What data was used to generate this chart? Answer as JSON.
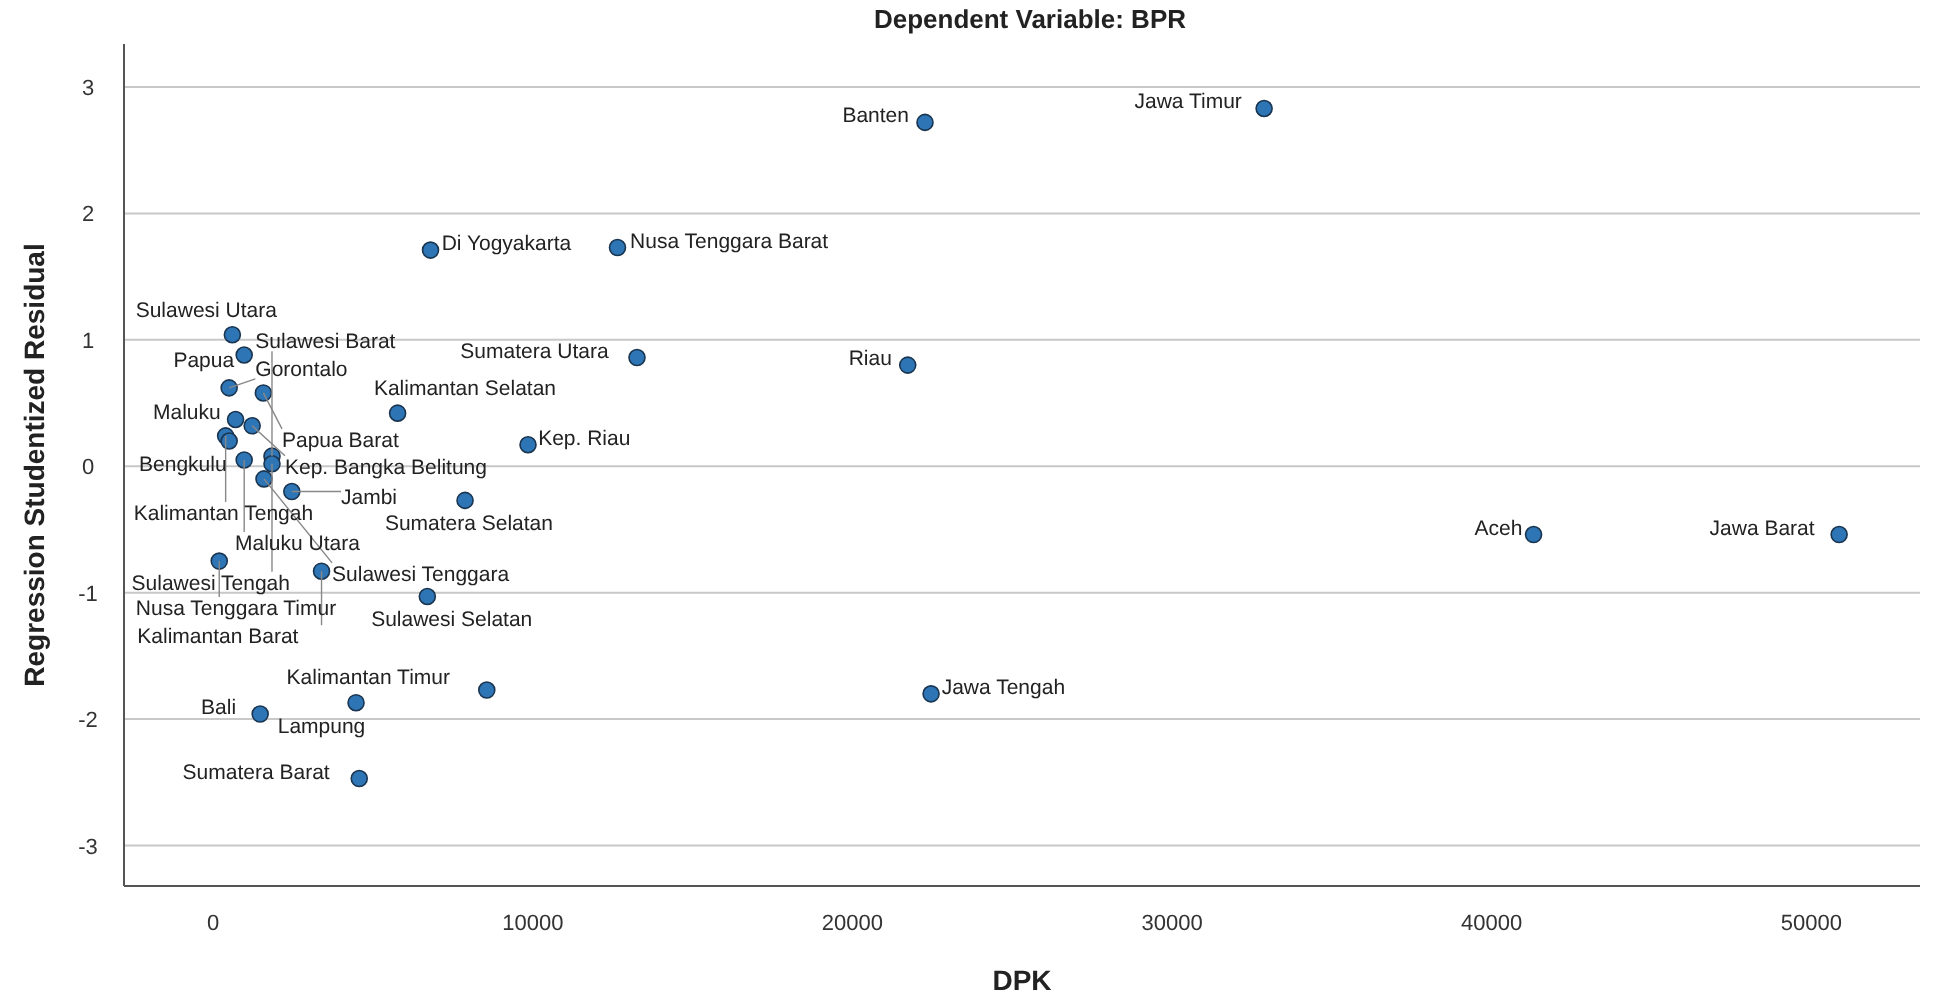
{
  "chart_data": {
    "type": "scatter",
    "title": "Dependent Variable: BPR",
    "xlabel": "DPK",
    "ylabel": "Regression Studentized Residual",
    "xlim": [
      -2790,
      53400
    ],
    "xticks": [
      0,
      10000,
      20000,
      30000,
      40000,
      50000
    ],
    "ylim": [
      -3.32,
      3.34
    ],
    "yticks": [
      -3,
      -2,
      -1,
      0,
      1,
      2,
      3
    ],
    "grid": "y",
    "marker": "circle",
    "series": [
      {
        "color": "#2e75b6",
        "x": [
          22270,
          32880,
          6800,
          12650,
          13260,
          21730,
          41310,
          50870,
          22460,
          8560,
          4470,
          1470,
          4570,
          600,
          970,
          500,
          1570,
          5770,
          700,
          1220,
          390,
          500,
          9850,
          970,
          1840,
          1840,
          1590,
          2460,
          7880,
          190,
          3390,
          6700
        ],
        "values": [
          2.72,
          2.83,
          1.71,
          1.73,
          0.86,
          0.8,
          -0.54,
          -0.54,
          -1.8,
          -1.77,
          -1.87,
          -1.96,
          -2.47,
          1.04,
          0.88,
          0.62,
          0.58,
          0.42,
          0.37,
          0.32,
          0.24,
          0.2,
          0.17,
          0.05,
          0.08,
          0.02,
          -0.1,
          -0.2,
          -0.27,
          -0.75,
          -0.83,
          -1.03
        ]
      }
    ],
    "annotations": [
      {
        "text": "Banten",
        "x": 22270,
        "y": 2.72
      },
      {
        "text": "Jawa Timur",
        "x": 32880,
        "y": 2.83
      },
      {
        "text": "Di Yogyakarta",
        "x": 6800,
        "y": 1.71
      },
      {
        "text": "Nusa Tenggara Barat",
        "x": 12650,
        "y": 1.73
      },
      {
        "text": "Sumatera Utara",
        "x": 13260,
        "y": 0.86
      },
      {
        "text": "Riau",
        "x": 21730,
        "y": 0.8
      },
      {
        "text": "Aceh",
        "x": 41310,
        "y": -0.54
      },
      {
        "text": "Jawa Barat",
        "x": 50870,
        "y": -0.54
      },
      {
        "text": "Jawa Tengah",
        "x": 22460,
        "y": -1.8
      },
      {
        "text": "Kalimantan Timur",
        "x": 8560,
        "y": -1.77
      },
      {
        "text": "Lampung",
        "x": 4470,
        "y": -1.87
      },
      {
        "text": "Bali",
        "x": 1470,
        "y": -1.96
      },
      {
        "text": "Sumatera Barat",
        "x": 4570,
        "y": -2.47
      },
      {
        "text": "Sulawesi Utara",
        "x": 600,
        "y": 1.04
      },
      {
        "text": "Papua",
        "x": 970,
        "y": 0.88
      },
      {
        "text": "Gorontalo",
        "x": 500,
        "y": 0.62
      },
      {
        "text": "Papua Barat",
        "x": 1570,
        "y": 0.58
      },
      {
        "text": "Kalimantan Selatan",
        "x": 5770,
        "y": 0.42
      },
      {
        "text": "Maluku",
        "x": 700,
        "y": 0.37
      },
      {
        "text": "Kep. Bangka Belitung",
        "x": 1220,
        "y": 0.32
      },
      {
        "text": "Kalimantan Tengah",
        "x": 390,
        "y": 0.24
      },
      {
        "text": "Bengkulu",
        "x": 500,
        "y": 0.2
      },
      {
        "text": "Kep. Riau",
        "x": 9850,
        "y": 0.17
      },
      {
        "text": "Maluku Utara",
        "x": 970,
        "y": 0.05
      },
      {
        "text": "Sulawesi Barat",
        "x": 1840,
        "y": 0.08
      },
      {
        "text": "Sulawesi Tengah",
        "x": 1840,
        "y": 0.02
      },
      {
        "text": "Sulawesi Tenggara",
        "x": 1590,
        "y": -0.1
      },
      {
        "text": "Jambi",
        "x": 2460,
        "y": -0.2
      },
      {
        "text": "Sumatera Selatan",
        "x": 7880,
        "y": -0.27
      },
      {
        "text": "Nusa Tenggara Timur",
        "x": 190,
        "y": -0.75
      },
      {
        "text": "Kalimantan Barat",
        "x": 3390,
        "y": -0.83
      },
      {
        "text": "Sulawesi Selatan",
        "x": 6700,
        "y": -1.03
      }
    ]
  }
}
